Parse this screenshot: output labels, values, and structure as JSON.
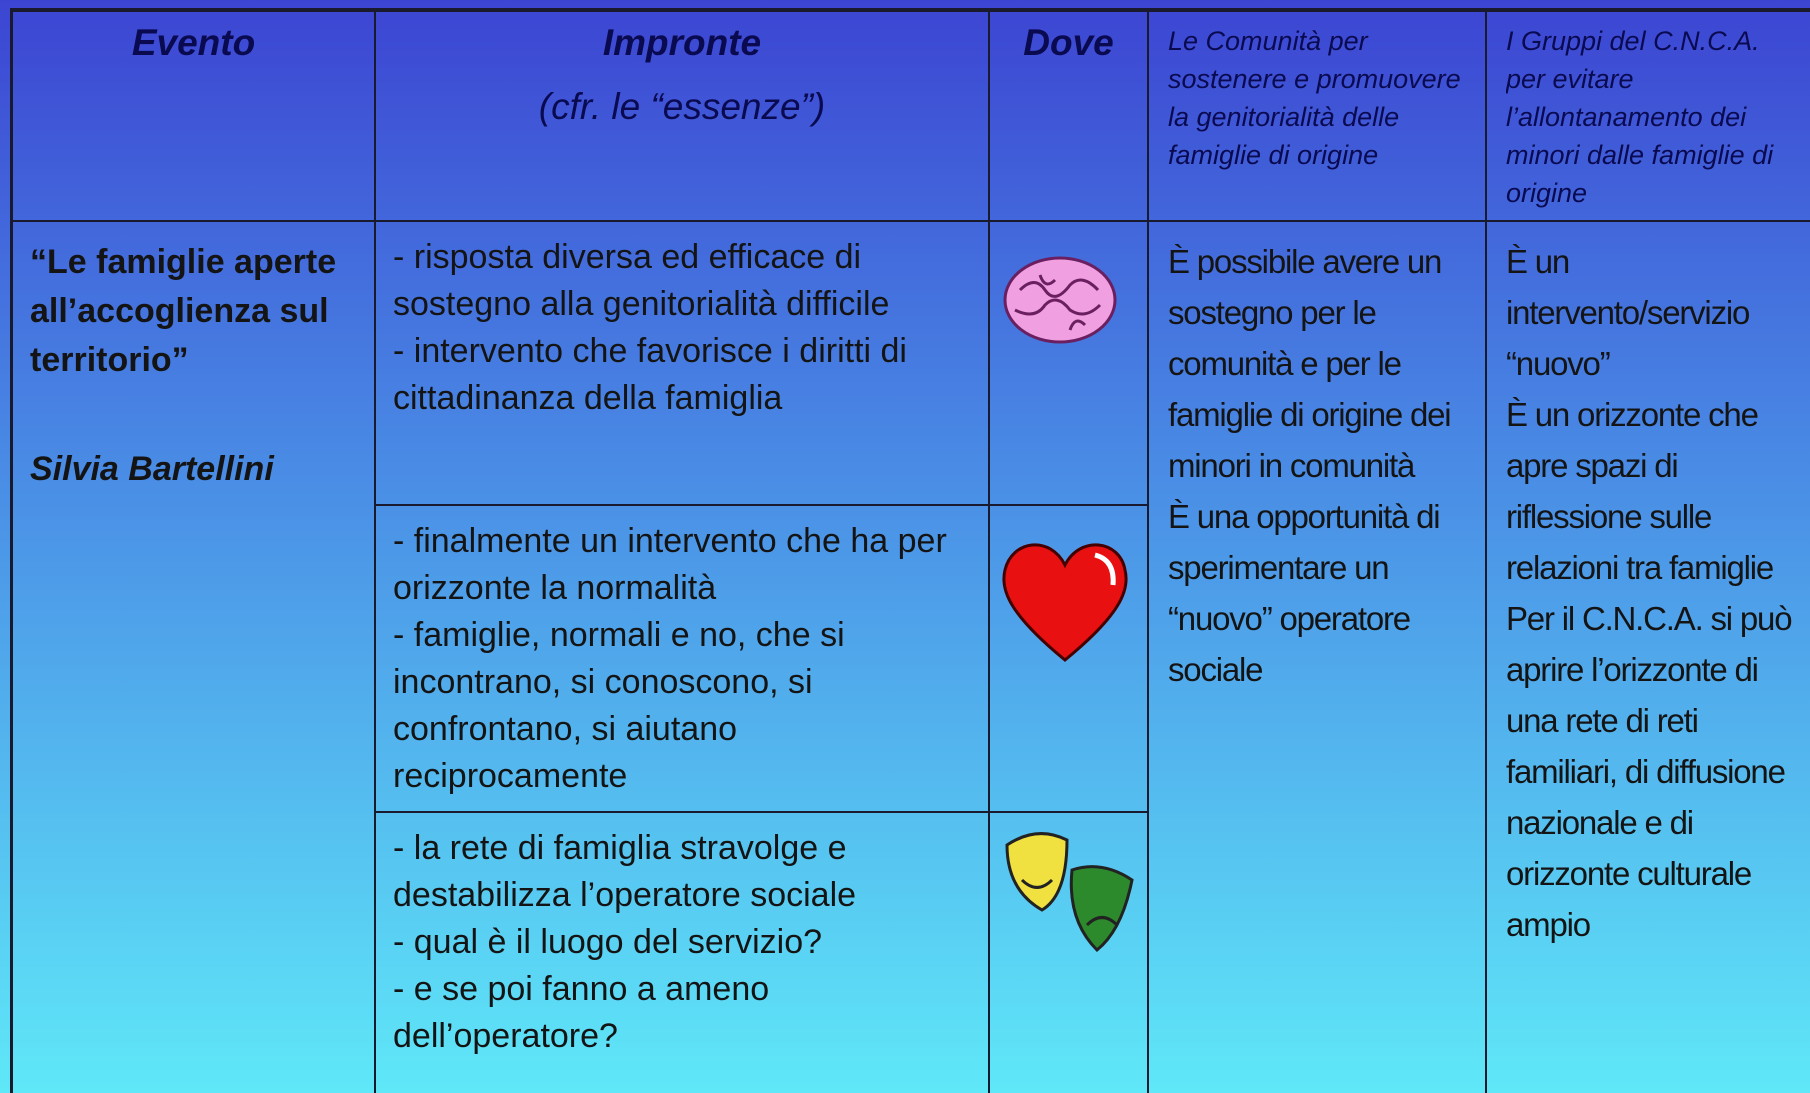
{
  "header": {
    "evento": "Evento",
    "impronte": "Impronte",
    "impronte_note": "(cfr. le “essenze”)",
    "dove": "Dove",
    "comunita": "Le Comunità per sostenere e promuovere la genitorialità delle famiglie di origine",
    "gruppi": "I Gruppi del C.N.C.A. per evitare l’allontanamento dei minori dalle famiglie di origine"
  },
  "event": {
    "title": "“Le famiglie aperte all’accoglienza sul territorio”",
    "author": "Silvia Bartellini"
  },
  "impronte": [
    [
      "- risposta diversa ed efficace di sostegno alla genitorialità difficile",
      "- intervento che favorisce i diritti di cittadinanza della famiglia"
    ],
    [
      "- finalmente un intervento che ha per orizzonte la normalità",
      "- famiglie, normali e no, che si incontrano, si conoscono, si confrontano, si aiutano reciprocamente"
    ],
    [
      "- la rete di famiglia stravolge e destabilizza l’operatore sociale",
      "- qual è il luogo del servizio?",
      "- e se poi fanno a ameno dell’operatore?"
    ]
  ],
  "comunita": [
    "È possibile avere un sostegno per le comunità e per le famiglie di origine dei minori in comunità",
    "È una opportunità di sperimentare un “nuovo” operatore sociale"
  ],
  "gruppi": [
    "È un intervento/servizio “nuovo”",
    "È un orizzonte che apre spazi di riflessione sulle relazioni tra famiglie",
    "Per il C.N.C.A. si può aprire l’orizzonte di una rete di reti familiari, di diffusione nazionale e di orizzonte culturale ampio"
  ]
}
